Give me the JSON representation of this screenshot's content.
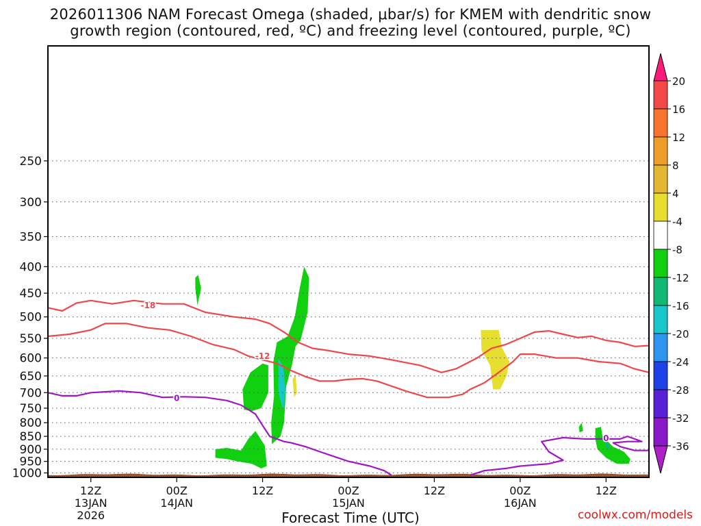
{
  "title_line1": "2026011306 NAM Forecast Omega (shaded, μbar/s) for KMEM with dendritic snow",
  "title_line2": "growth region (contoured, red, ºC) and freezing level (contoured, purple, ºC)",
  "watermark": "coolwx.com/models",
  "chart_data": {
    "type": "contour",
    "title": "2026011306 NAM Forecast Omega (shaded, μbar/s) for KMEM with dendritic snow growth region (contoured, red, ºC) and freezing level (contoured, purple, ºC)",
    "xlabel": "Forecast Time (UTC)",
    "ylabel": "Pressure (hPa)",
    "xlim_hours": [
      0,
      84
    ],
    "ylim_hpa": [
      1020,
      150
    ],
    "x_ticks": [
      {
        "hour": 6,
        "lines": [
          "12Z",
          "13JAN",
          "2026"
        ]
      },
      {
        "hour": 18,
        "lines": [
          "00Z",
          "14JAN"
        ]
      },
      {
        "hour": 30,
        "lines": [
          "12Z"
        ]
      },
      {
        "hour": 42,
        "lines": [
          "00Z",
          "15JAN"
        ]
      },
      {
        "hour": 54,
        "lines": [
          "12Z"
        ]
      },
      {
        "hour": 66,
        "lines": [
          "00Z",
          "16JAN"
        ]
      },
      {
        "hour": 78,
        "lines": [
          "12Z"
        ]
      }
    ],
    "y_ticks": [
      250,
      300,
      350,
      400,
      450,
      500,
      550,
      600,
      650,
      700,
      750,
      800,
      850,
      900,
      950,
      1000
    ],
    "grid": true,
    "colorbar": {
      "labels": [
        "20",
        "16",
        "12",
        "8",
        "4",
        "-4",
        "-8",
        "-12",
        "-16",
        "-20",
        "-24",
        "-28",
        "-32",
        "-36"
      ],
      "colors": [
        "#ff1b7c",
        "#f44848",
        "#f77330",
        "#f09c28",
        "#e3b634",
        "#e6df30",
        "#ffffff",
        "#10d010",
        "#10b874",
        "#18c8c8",
        "#2f96f0",
        "#2040e8",
        "#5a20d8",
        "#8a18c8",
        "#b020c8",
        "#aaaaaa",
        "#111111"
      ]
    },
    "series": [
      {
        "name": "-18",
        "color": "#f0464a",
        "label_at": [
          14,
          475
        ],
        "points": [
          [
            0,
            480
          ],
          [
            2,
            487
          ],
          [
            4,
            470
          ],
          [
            6,
            465
          ],
          [
            9,
            472
          ],
          [
            12,
            465
          ],
          [
            16,
            472
          ],
          [
            19,
            472
          ],
          [
            22,
            490
          ],
          [
            26,
            500
          ],
          [
            29,
            505
          ],
          [
            31,
            515
          ],
          [
            33,
            535
          ],
          [
            35,
            560
          ],
          [
            37,
            575
          ],
          [
            39,
            580
          ],
          [
            42,
            590
          ],
          [
            45,
            595
          ],
          [
            48,
            605
          ],
          [
            52,
            620
          ],
          [
            55,
            640
          ],
          [
            57,
            630
          ],
          [
            60,
            600
          ],
          [
            62,
            575
          ],
          [
            64,
            565
          ],
          [
            66,
            550
          ],
          [
            68,
            535
          ],
          [
            70,
            532
          ],
          [
            72,
            540
          ],
          [
            74,
            548
          ],
          [
            76,
            545
          ],
          [
            78,
            555
          ],
          [
            80,
            560
          ],
          [
            82,
            570
          ],
          [
            84,
            568
          ]
        ]
      },
      {
        "name": "-12",
        "color": "#f0464a",
        "label_at": [
          30,
          595
        ],
        "points": [
          [
            0,
            545
          ],
          [
            3,
            540
          ],
          [
            6,
            530
          ],
          [
            8,
            515
          ],
          [
            11,
            515
          ],
          [
            14,
            525
          ],
          [
            17,
            530
          ],
          [
            20,
            545
          ],
          [
            23,
            565
          ],
          [
            26,
            578
          ],
          [
            28,
            595
          ],
          [
            30,
            605
          ],
          [
            32,
            615
          ],
          [
            34,
            635
          ],
          [
            36,
            652
          ],
          [
            38,
            665
          ],
          [
            40,
            665
          ],
          [
            42,
            660
          ],
          [
            44,
            658
          ],
          [
            46,
            665
          ],
          [
            48,
            680
          ],
          [
            50,
            695
          ],
          [
            53,
            715
          ],
          [
            56,
            715
          ],
          [
            58,
            705
          ],
          [
            59,
            690
          ],
          [
            61,
            670
          ],
          [
            63,
            640
          ],
          [
            65,
            610
          ],
          [
            66,
            590
          ],
          [
            68,
            590
          ],
          [
            71,
            600
          ],
          [
            74,
            600
          ],
          [
            77,
            610
          ],
          [
            80,
            615
          ],
          [
            82,
            630
          ],
          [
            84,
            640
          ]
        ]
      },
      {
        "name": "0",
        "color": "#a014c8",
        "label_at": [
          18,
          718
        ],
        "points": [
          [
            0,
            700
          ],
          [
            2,
            710
          ],
          [
            4,
            710
          ],
          [
            6,
            700
          ],
          [
            10,
            695
          ],
          [
            13,
            700
          ],
          [
            16,
            715
          ],
          [
            19,
            713
          ],
          [
            22,
            715
          ],
          [
            25,
            725
          ],
          [
            27,
            740
          ],
          [
            29,
            770
          ],
          [
            30,
            810
          ],
          [
            31,
            850
          ],
          [
            33,
            870
          ],
          [
            34,
            875
          ],
          [
            36,
            890
          ],
          [
            38,
            910
          ],
          [
            40,
            930
          ],
          [
            42,
            950
          ],
          [
            45,
            970
          ],
          [
            47,
            990
          ],
          [
            48,
            1010
          ]
        ]
      },
      {
        "name": "0",
        "color": "#a014c8",
        "label_at": [
          78,
          858
        ],
        "points": [
          [
            59,
            1010
          ],
          [
            61,
            990
          ],
          [
            64,
            980
          ],
          [
            66,
            970
          ],
          [
            70,
            960
          ],
          [
            72,
            945
          ],
          [
            70,
            910
          ],
          [
            69,
            870
          ],
          [
            72,
            855
          ],
          [
            75,
            860
          ],
          [
            78,
            860
          ],
          [
            80,
            860
          ],
          [
            81,
            850
          ],
          [
            82,
            860
          ],
          [
            83,
            870
          ],
          [
            81,
            870
          ],
          [
            79,
            875
          ],
          [
            80,
            890
          ],
          [
            82,
            905
          ],
          [
            84,
            905
          ]
        ]
      }
    ],
    "omega_regions": [
      {
        "value": -4,
        "color": "#10d010",
        "points": [
          [
            20.6,
            420
          ],
          [
            21,
            415
          ],
          [
            21.4,
            440
          ],
          [
            20.9,
            475
          ],
          [
            20.6,
            440
          ]
        ]
      },
      {
        "value": -4,
        "color": "#10d010",
        "points": [
          [
            27.2,
            690
          ],
          [
            28.3,
            640
          ],
          [
            30,
            615
          ],
          [
            30.8,
            620
          ],
          [
            30.8,
            700
          ],
          [
            29.8,
            750
          ],
          [
            28.5,
            760
          ],
          [
            27.4,
            755
          ]
        ]
      },
      {
        "value": -4,
        "color": "#10d010",
        "points": [
          [
            31.3,
            880
          ],
          [
            31.2,
            800
          ],
          [
            31.6,
            710
          ],
          [
            31.5,
            610
          ],
          [
            32,
            560
          ],
          [
            33.5,
            545
          ],
          [
            34.5,
            500
          ],
          [
            35.2,
            440
          ],
          [
            35.8,
            400
          ],
          [
            36.5,
            420
          ],
          [
            36.3,
            490
          ],
          [
            35.3,
            555
          ],
          [
            34.6,
            570
          ],
          [
            34.1,
            620
          ],
          [
            33.3,
            680
          ],
          [
            33.0,
            800
          ],
          [
            32.5,
            850
          ]
        ]
      },
      {
        "value": -8,
        "color": "#18c8c8",
        "points": [
          [
            32.2,
            600
          ],
          [
            32.9,
            625
          ],
          [
            33.2,
            690
          ],
          [
            32.9,
            760
          ],
          [
            32.2,
            700
          ]
        ]
      },
      {
        "value": -4,
        "color": "#10d010",
        "points": [
          [
            23.4,
            900
          ],
          [
            25,
            895
          ],
          [
            27,
            905
          ],
          [
            28,
            860
          ],
          [
            29,
            830
          ],
          [
            30.3,
            885
          ],
          [
            30.6,
            970
          ],
          [
            29.8,
            980
          ],
          [
            28.5,
            960
          ],
          [
            26.5,
            950
          ],
          [
            25,
            940
          ],
          [
            23.4,
            935
          ]
        ]
      },
      {
        "value": 4,
        "color": "#e6df30",
        "points": [
          [
            34.2,
            660
          ],
          [
            34.6,
            645
          ],
          [
            34.8,
            700
          ],
          [
            34.4,
            715
          ]
        ]
      },
      {
        "value": 4,
        "color": "#e6df30",
        "points": [
          [
            60.5,
            530
          ],
          [
            63,
            530
          ],
          [
            63.5,
            575
          ],
          [
            64.5,
            610
          ],
          [
            64.1,
            650
          ],
          [
            63.2,
            690
          ],
          [
            62.2,
            690
          ],
          [
            61.8,
            620
          ],
          [
            60.6,
            580
          ]
        ]
      },
      {
        "value": -4,
        "color": "#10d010",
        "points": [
          [
            74.2,
            815
          ],
          [
            74.6,
            800
          ],
          [
            74.8,
            830
          ],
          [
            74.3,
            835
          ]
        ]
      },
      {
        "value": -4,
        "color": "#10d010",
        "points": [
          [
            76.5,
            820
          ],
          [
            77.3,
            815
          ],
          [
            77.5,
            850
          ],
          [
            79,
            890
          ],
          [
            80.5,
            910
          ],
          [
            81.4,
            940
          ],
          [
            81.2,
            960
          ],
          [
            79.5,
            960
          ],
          [
            78,
            935
          ],
          [
            76.8,
            900
          ],
          [
            76.5,
            860
          ]
        ]
      },
      {
        "value": -8,
        "color": "#10b874",
        "points": [
          [
            77.8,
            865
          ],
          [
            78.3,
            875
          ],
          [
            78.6,
            900
          ],
          [
            78,
            895
          ]
        ]
      }
    ],
    "terrain": {
      "color": "#a0522d"
    }
  }
}
